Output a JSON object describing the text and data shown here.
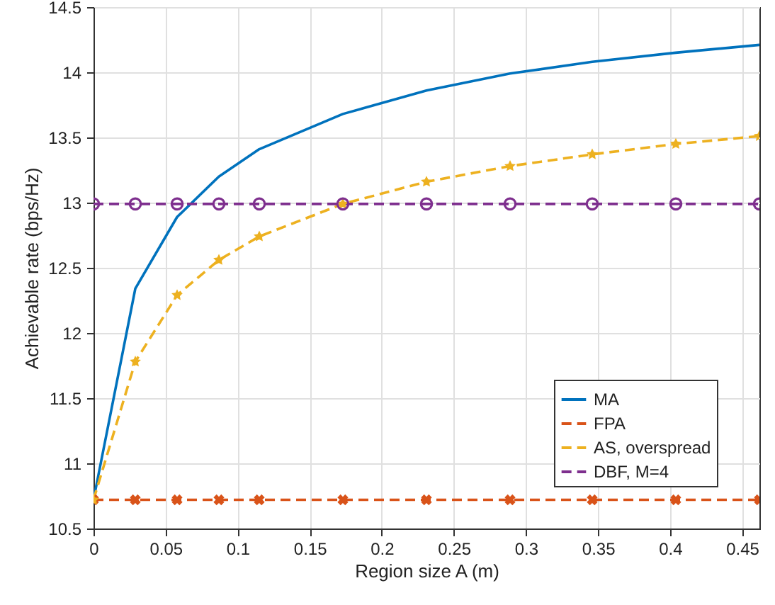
{
  "chart_data": {
    "type": "line",
    "xlabel": "Region size A (m)",
    "ylabel": "Achievable rate (bps/Hz)",
    "x": [
      0,
      0.029,
      0.058,
      0.087,
      0.115,
      0.173,
      0.231,
      0.289,
      0.346,
      0.404,
      0.462
    ],
    "series": [
      {
        "name": "MA",
        "color": "#0072bd",
        "marker": "none",
        "line_style": "solid",
        "values": [
          10.72,
          12.34,
          12.89,
          13.2,
          13.41,
          13.68,
          13.86,
          13.99,
          14.08,
          14.15,
          14.21
        ]
      },
      {
        "name": "FPA",
        "color": "#d95319",
        "marker": "cross",
        "line_style": "dashed",
        "values": [
          10.72,
          10.72,
          10.72,
          10.72,
          10.72,
          10.72,
          10.72,
          10.72,
          10.72,
          10.72,
          10.72
        ]
      },
      {
        "name": "AS, overspread",
        "color": "#edb120",
        "marker": "star",
        "line_style": "dashed",
        "values": [
          10.72,
          11.78,
          12.29,
          12.56,
          12.74,
          12.99,
          13.16,
          13.28,
          13.37,
          13.45,
          13.51
        ]
      },
      {
        "name": "DBF, M=4",
        "color": "#7e2f8e",
        "marker": "circle",
        "line_style": "dashed",
        "values": [
          12.99,
          12.99,
          12.99,
          12.99,
          12.99,
          12.99,
          12.99,
          12.99,
          12.99,
          12.99,
          12.99
        ]
      }
    ],
    "xlim": [
      0,
      0.462
    ],
    "xticks": [
      0,
      0.05,
      0.1,
      0.15,
      0.2,
      0.25,
      0.3,
      0.35,
      0.4,
      0.45
    ],
    "ylim": [
      10.5,
      14.5
    ],
    "yticks": [
      10.5,
      11,
      11.5,
      12,
      12.5,
      13,
      13.5,
      14,
      14.5
    ],
    "grid": true,
    "legend": "bottom right"
  }
}
